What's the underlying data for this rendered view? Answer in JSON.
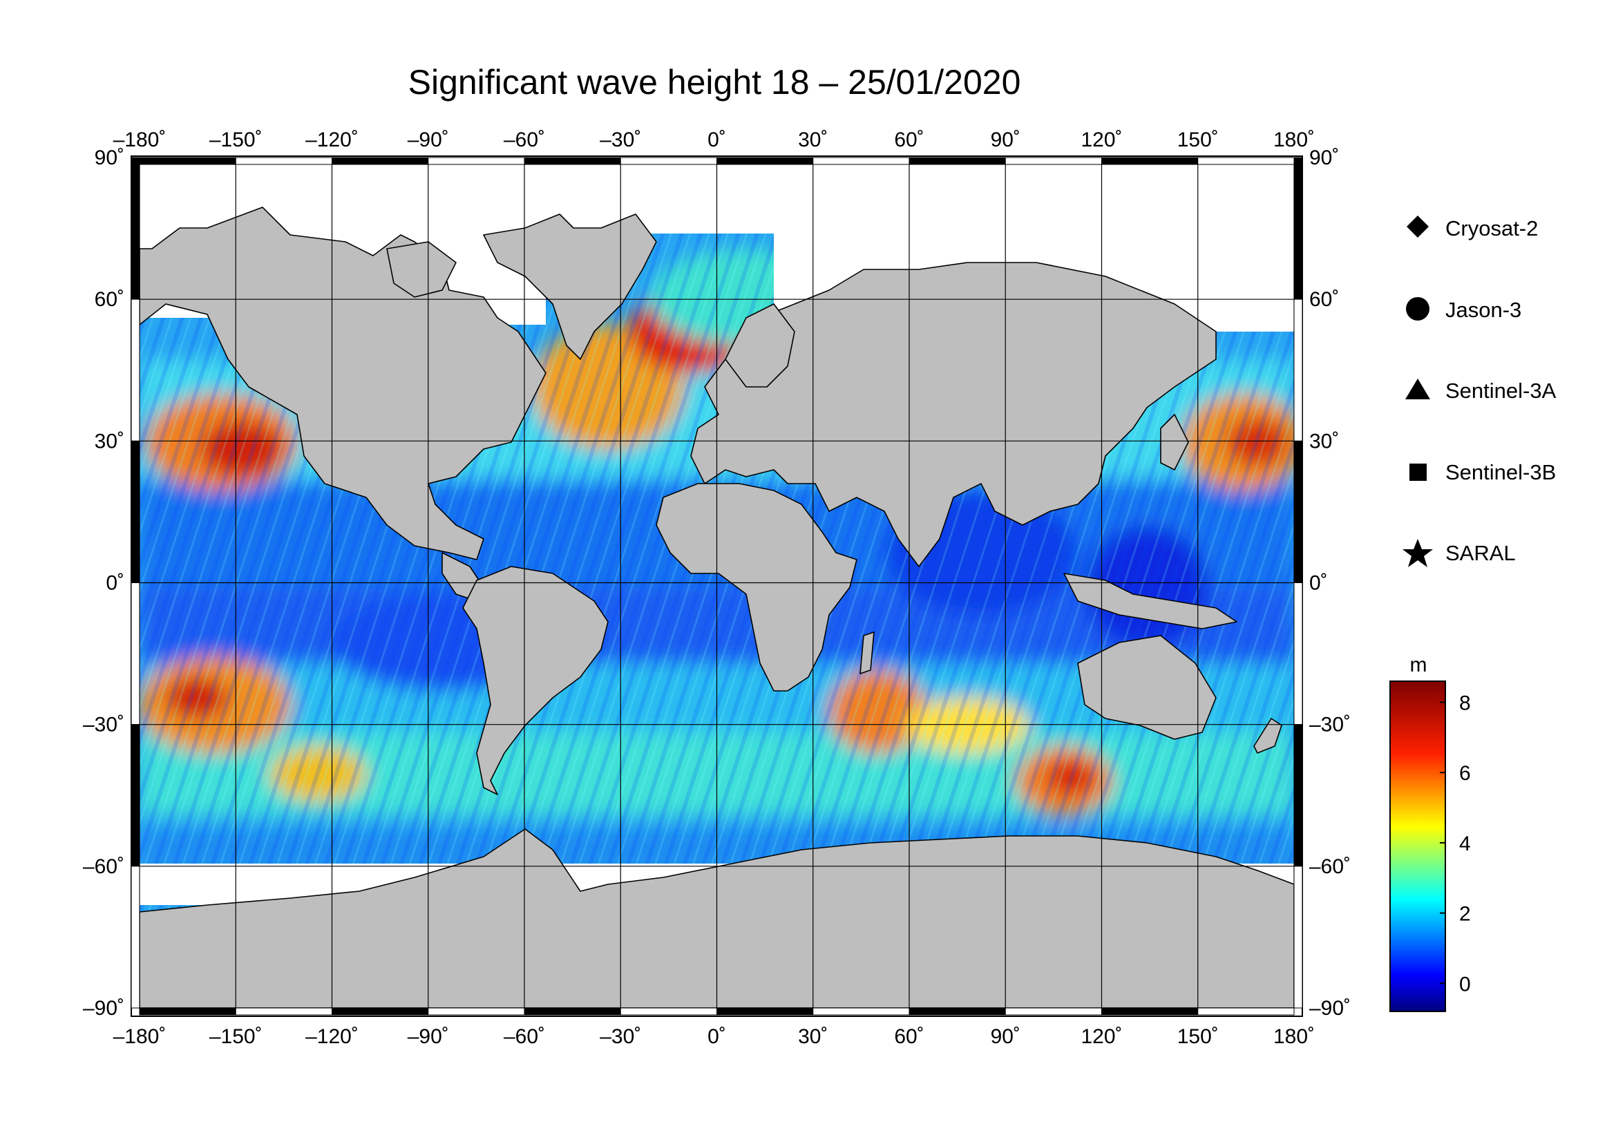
{
  "title": "Significant wave height 18 – 25/01/2020",
  "map": {
    "projection": "equirectangular",
    "lon_range": [
      -180,
      180
    ],
    "lat_range": [
      -90,
      90
    ],
    "lon_ticks": [
      "–180˚",
      "–150˚",
      "–120˚",
      "–90˚",
      "–60˚",
      "–30˚",
      "0˚",
      "30˚",
      "60˚",
      "90˚",
      "120˚",
      "150˚",
      "180˚"
    ],
    "lat_ticks": [
      "90˚",
      "60˚",
      "30˚",
      "0˚",
      "–30˚",
      "–60˚",
      "–90˚"
    ],
    "grid": true,
    "ocean_colorscale": "jet",
    "land_color": "#bebebe"
  },
  "legend": {
    "placement": "right",
    "items": [
      {
        "label": "Cryosat-2",
        "marker": "diamond"
      },
      {
        "label": "Jason-3",
        "marker": "circle"
      },
      {
        "label": "Sentinel-3A",
        "marker": "triangle"
      },
      {
        "label": "Sentinel-3B",
        "marker": "square"
      },
      {
        "label": "SARAL",
        "marker": "star"
      }
    ]
  },
  "colorbar": {
    "unit": "m",
    "range": [
      -0.8,
      8.6
    ],
    "tick_labels": [
      "8",
      "6",
      "4",
      "2",
      "0"
    ],
    "colors": [
      "#00007f",
      "#0000ff",
      "#007fff",
      "#00ffff",
      "#7fff7f",
      "#ffff00",
      "#ff7f00",
      "#ff0000",
      "#7f0000"
    ]
  }
}
